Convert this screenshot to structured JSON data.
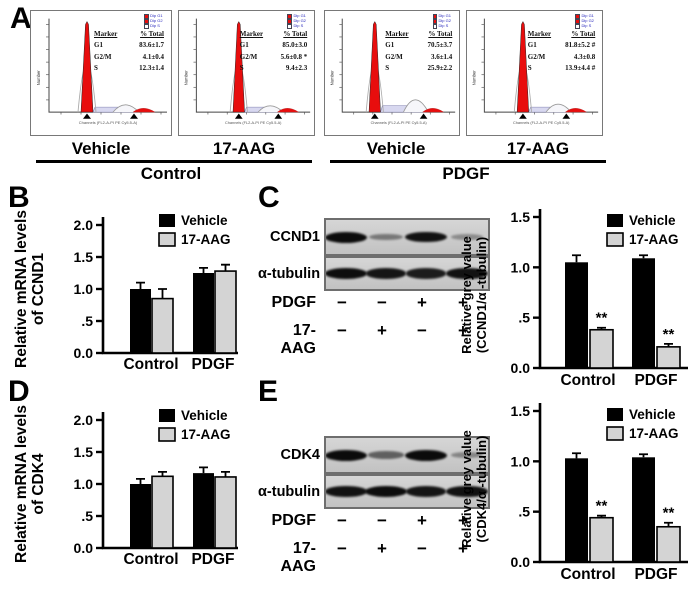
{
  "colors": {
    "vehicle_bar": "#000000",
    "aag_bar": "#d4d4d4",
    "flow_peak_red": "#e80d0d",
    "flow_s_fill": "#d8d8f0",
    "flow_s_stroke": "#8080b0",
    "flow_g2_stroke": "#9a9a9a",
    "flow_legend_text": "#2424bb",
    "axis_black": "#000000"
  },
  "panel_labels": {
    "A": "A",
    "B": "B",
    "C": "C",
    "D": "D",
    "E": "E"
  },
  "panel_a": {
    "flow_plots": [
      {
        "treatment": "Vehicle",
        "group": "Control",
        "y_axis_label": "Number",
        "x_axis_label": "Channels (FL2-A-PI PE Cy5.5-A)",
        "table": {
          "header": [
            "Marker",
            "% Total"
          ],
          "rows": [
            [
              "G1",
              "83.6±1.7"
            ],
            [
              "G2/M",
              "4.1±0.4"
            ],
            [
              "S",
              "12.3±1.4"
            ]
          ]
        }
      },
      {
        "treatment": "17-AAG",
        "group": "Control",
        "y_axis_label": "Number",
        "x_axis_label": "Channels (FL2-A-PI PE Cy5.5-A)",
        "table": {
          "header": [
            "Marker",
            "% Total"
          ],
          "rows": [
            [
              "G1",
              "85.0±3.0"
            ],
            [
              "G2/M",
              "5.6±0.8 *"
            ],
            [
              "S",
              "9.4±2.3"
            ]
          ]
        }
      },
      {
        "treatment": "Vehicle",
        "group": "PDGF",
        "y_axis_label": "Number",
        "x_axis_label": "Channels (FL2-A-PI PE Cy5.5-A)",
        "table": {
          "header": [
            "Marker",
            "% Total"
          ],
          "rows": [
            [
              "G1",
              "70.5±3.7"
            ],
            [
              "G2/M",
              "3.6±1.4"
            ],
            [
              "S",
              "25.9±2.2"
            ]
          ]
        }
      },
      {
        "treatment": "17-AAG",
        "group": "PDGF",
        "y_axis_label": "Number",
        "x_axis_label": "Channels (FL2-A-PI PE Cy5.5-A)",
        "table": {
          "header": [
            "Marker",
            "% Total"
          ],
          "rows": [
            [
              "G1",
              "81.8±5.2 #"
            ],
            [
              "G2/M",
              "4.3±0.8"
            ],
            [
              "S",
              "13.9±4.4 #"
            ]
          ]
        }
      }
    ],
    "legend": [
      "Dip G1",
      "Dip G2",
      "Dip S"
    ],
    "groups": [
      {
        "label": "Control",
        "treatments": [
          "Vehicle",
          "17-AAG"
        ]
      },
      {
        "label": "PDGF",
        "treatments": [
          "Vehicle",
          "17-AAG"
        ]
      }
    ]
  },
  "blots": [
    {
      "id": "C",
      "targets": [
        {
          "name": "CCND1",
          "band_intensities": [
            1.0,
            0.3,
            0.92,
            0.18
          ]
        },
        {
          "name": "α-tubulin",
          "band_intensities": [
            0.95,
            0.9,
            0.86,
            0.92
          ]
        }
      ],
      "conditions": [
        {
          "name": "PDGF",
          "signs": [
            "−",
            "−",
            "+",
            "+"
          ]
        },
        {
          "name": "17-AAG",
          "signs": [
            "−",
            "+",
            "−",
            "+"
          ]
        }
      ]
    },
    {
      "id": "E",
      "targets": [
        {
          "name": "CDK4",
          "band_intensities": [
            1.0,
            0.45,
            1.0,
            0.22
          ]
        },
        {
          "name": "α-tubulin",
          "band_intensities": [
            0.92,
            0.95,
            0.9,
            0.93
          ]
        }
      ],
      "conditions": [
        {
          "name": "PDGF",
          "signs": [
            "−",
            "−",
            "+",
            "+"
          ]
        },
        {
          "name": "17-AAG",
          "signs": [
            "−",
            "+",
            "−",
            "+"
          ]
        }
      ]
    }
  ],
  "chart_data": [
    {
      "id": "B",
      "type": "bar",
      "title": "",
      "xlabel": "",
      "ylabel": "Relative mRNA levels of CCND1",
      "ylabel_lines": [
        "Relative mRNA levels",
        "of CCND1"
      ],
      "categories": [
        "Control",
        "PDGF"
      ],
      "series": [
        {
          "name": "Vehicle",
          "values": [
            1.0,
            1.25
          ],
          "errors": [
            0.1,
            0.08
          ],
          "sig": [
            null,
            null
          ]
        },
        {
          "name": "17-AAG",
          "values": [
            0.85,
            1.28
          ],
          "errors": [
            0.15,
            0.1
          ],
          "sig": [
            null,
            null
          ]
        }
      ],
      "ylim": [
        0,
        2.0
      ],
      "yticks": [
        0,
        0.5,
        1.0,
        1.5,
        2.0
      ],
      "ytick_labels": [
        "0.0",
        ".5",
        "1.0",
        "1.5",
        "2.0"
      ],
      "legend_position": "top-right",
      "grid": false
    },
    {
      "id": "C",
      "type": "bar",
      "title": "",
      "xlabel": "",
      "ylabel": "Relative grey value (CCND1/α -tubulin)",
      "ylabel_lines": [
        "Relative grey value",
        "(CCND1/α -tubulin)"
      ],
      "categories": [
        "Control",
        "PDGF"
      ],
      "series": [
        {
          "name": "Vehicle",
          "values": [
            1.05,
            1.09
          ],
          "errors": [
            0.07,
            0.03
          ],
          "sig": [
            null,
            null
          ]
        },
        {
          "name": "17-AAG",
          "values": [
            0.38,
            0.21
          ],
          "errors": [
            0.02,
            0.03
          ],
          "sig": [
            "**",
            "**"
          ]
        }
      ],
      "ylim": [
        0,
        1.5
      ],
      "yticks": [
        0,
        0.5,
        1.0,
        1.5
      ],
      "ytick_labels": [
        "0.0",
        ".5",
        "1.0",
        "1.5"
      ],
      "legend_position": "top-right",
      "grid": false
    },
    {
      "id": "D",
      "type": "bar",
      "title": "",
      "xlabel": "",
      "ylabel": "Relative mRNA levels of CDK4",
      "ylabel_lines": [
        "Relative mRNA levels",
        "of CDK4"
      ],
      "categories": [
        "Control",
        "PDGF"
      ],
      "series": [
        {
          "name": "Vehicle",
          "values": [
            1.0,
            1.17
          ],
          "errors": [
            0.08,
            0.09
          ],
          "sig": [
            null,
            null
          ]
        },
        {
          "name": "17-AAG",
          "values": [
            1.12,
            1.11
          ],
          "errors": [
            0.07,
            0.08
          ],
          "sig": [
            null,
            null
          ]
        }
      ],
      "ylim": [
        0,
        2.0
      ],
      "yticks": [
        0,
        0.5,
        1.0,
        1.5,
        2.0
      ],
      "ytick_labels": [
        "0.0",
        ".5",
        "1.0",
        "1.5",
        "2.0"
      ],
      "legend_position": "top-right",
      "grid": false
    },
    {
      "id": "E",
      "type": "bar",
      "title": "",
      "xlabel": "",
      "ylabel": "Relative grey value (CDK4/α -tubulin)",
      "ylabel_lines": [
        "Relative grey value",
        "(CDK4/α -tubulin)"
      ],
      "categories": [
        "Control",
        "PDGF"
      ],
      "series": [
        {
          "name": "Vehicle",
          "values": [
            1.03,
            1.04
          ],
          "errors": [
            0.05,
            0.03
          ],
          "sig": [
            null,
            null
          ]
        },
        {
          "name": "17-AAG",
          "values": [
            0.44,
            0.35
          ],
          "errors": [
            0.02,
            0.04
          ],
          "sig": [
            "**",
            "**"
          ]
        }
      ],
      "ylim": [
        0,
        1.5
      ],
      "yticks": [
        0,
        0.5,
        1.0,
        1.5
      ],
      "ytick_labels": [
        "0.0",
        ".5",
        "1.0",
        "1.5"
      ],
      "legend_position": "top-right",
      "grid": false
    }
  ]
}
